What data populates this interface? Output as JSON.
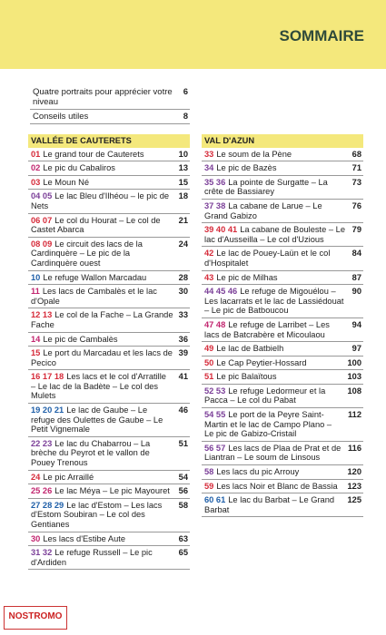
{
  "header": {
    "title": "SOMMAIRE"
  },
  "intro": [
    {
      "title": "Quatre portraits pour apprécier votre niveau",
      "page": 6
    },
    {
      "title": "Conseils utiles",
      "page": 8
    }
  ],
  "sections": [
    {
      "title": "VALLÉE DE CAUTERETS",
      "entries": [
        {
          "nums": "01",
          "title": "Le grand tour de Cauterets",
          "page": 10,
          "color": "#d62b3a"
        },
        {
          "nums": "02",
          "title": "Le pic du Cabaliros",
          "page": 13,
          "color": "#c2256f"
        },
        {
          "nums": "03",
          "title": "Le Moun Né",
          "page": 15,
          "color": "#d62b3a"
        },
        {
          "nums": "04 05",
          "title": "Le lac Bleu d'Ilhéou – le pic de Nets",
          "page": 18,
          "color": "#7b3f98"
        },
        {
          "nums": "06 07",
          "title": "Le col du Hourat – Le col de Castet Abarca",
          "page": 21,
          "color": "#d62b3a"
        },
        {
          "nums": "08 09",
          "title": "Le circuit des lacs de la Cardinquère – Le pic de la Cardinquère ouest",
          "page": 24,
          "color": "#d62b3a"
        },
        {
          "nums": "10",
          "title": "Le refuge Wallon Marcadau",
          "page": 28,
          "color": "#1f5fa8"
        },
        {
          "nums": "11",
          "title": "Les lacs de Cambalès et le lac d'Opale",
          "page": 30,
          "color": "#c2256f"
        },
        {
          "nums": "12 13",
          "title": "Le col de la Fache – La Grande Fache",
          "page": 33,
          "color": "#d62b3a"
        },
        {
          "nums": "14",
          "title": "Le pic de Cambalès",
          "page": 36,
          "color": "#c2256f"
        },
        {
          "nums": "15",
          "title": "Le port du Marcadau et les lacs de Pecico",
          "page": 39,
          "color": "#d62b3a"
        },
        {
          "nums": "16 17 18",
          "title": "Les lacs et le col d'Arratille – Le lac de la Badète – Le col des Mulets",
          "page": 41,
          "color": "#d62b3a"
        },
        {
          "nums": "19 20 21",
          "title": "Le lac de Gaube – Le refuge des Oulettes de Gaube – Le Petit Vignemale",
          "page": 46,
          "color": "#1f5fa8"
        },
        {
          "nums": "22 23",
          "title": "Le lac du Chabarrou – La brèche du Peyrot et le vallon de Pouey Trenous",
          "page": 51,
          "color": "#7b3f98"
        },
        {
          "nums": "24",
          "title": "Le pic Arraillé",
          "page": 54,
          "color": "#d62b3a"
        },
        {
          "nums": "25 26",
          "title": "Le lac Méya – Le pic Mayouret",
          "page": 56,
          "color": "#c2256f"
        },
        {
          "nums": "27 28 29",
          "title": "Le lac d'Estom – Les lacs d'Estom Soubiran – Le col des Gentianes",
          "page": 58,
          "color": "#1f5fa8"
        },
        {
          "nums": "30",
          "title": "Les lacs d'Estibe Aute",
          "page": 63,
          "color": "#c2256f"
        },
        {
          "nums": "31 32",
          "title": "Le refuge Russell – Le pic d'Ardiden",
          "page": 65,
          "color": "#7b3f98"
        }
      ]
    },
    {
      "title": "VAL D'AZUN",
      "entries": [
        {
          "nums": "33",
          "title": "Le soum de la Pène",
          "page": 68,
          "color": "#d62b3a"
        },
        {
          "nums": "34",
          "title": "Le pic de Bazès",
          "page": 71,
          "color": "#7b3f98"
        },
        {
          "nums": "35 36",
          "title": "La pointe de Surgatte – La crête de Bassiarey",
          "page": 73,
          "color": "#7b3f98"
        },
        {
          "nums": "37 38",
          "title": "La cabane de Larue – Le Grand Gabizo",
          "page": 76,
          "color": "#7b3f98"
        },
        {
          "nums": "39 40 41",
          "title": "La cabane de Bouleste – Le lac d'Ausseilla – Le col d'Uzious",
          "page": 79,
          "color": "#d62b3a"
        },
        {
          "nums": "42",
          "title": "Le lac de Pouey-Laün et le col d'Hospitalet",
          "page": 84,
          "color": "#d62b3a"
        },
        {
          "nums": "43",
          "title": "Le pic de Milhas",
          "page": 87,
          "color": "#d62b3a"
        },
        {
          "nums": "44 45 46",
          "title": "Le refuge de Migouélou – Les lacarrats et le lac de Lassiédouat – Le pic de Batboucou",
          "page": 90,
          "color": "#7b3f98"
        },
        {
          "nums": "47 48",
          "title": "Le refuge de Larribet – Les lacs de Batcrabère et Micoulaou",
          "page": 94,
          "color": "#c2256f"
        },
        {
          "nums": "49",
          "title": "Le lac de Batbielh",
          "page": 97,
          "color": "#d62b3a"
        },
        {
          "nums": "50",
          "title": "Le Cap Peytier-Hossard",
          "page": 100,
          "color": "#d62b3a"
        },
        {
          "nums": "51",
          "title": "Le pic Balaïtous",
          "page": 103,
          "color": "#d62b3a"
        },
        {
          "nums": "52 53",
          "title": "Le refuge Ledormeur et la Pacca – Le col du Pabat",
          "page": 108,
          "color": "#7b3f98"
        },
        {
          "nums": "54 55",
          "title": "Le port de la Peyre Saint-Martin et le lac de Campo Plano – Le pic de Gabizo-Cristail",
          "page": 112,
          "color": "#7b3f98"
        },
        {
          "nums": "56 57",
          "title": "Les lacs de Plaa de Prat et de Liantran – Le soum de Linsous",
          "page": 116,
          "color": "#7b3f98"
        },
        {
          "nums": "58",
          "title": "Les lacs du pic Arrouy",
          "page": 120,
          "color": "#7b3f98"
        },
        {
          "nums": "59",
          "title": "Les lacs Noir et Blanc de Bassia",
          "page": 123,
          "color": "#d62b3a"
        },
        {
          "nums": "60 61",
          "title": "Le lac du Barbat – Le Grand Barbat",
          "page": 125,
          "color": "#1f5fa8"
        }
      ]
    }
  ],
  "logo": "NOSTROMO"
}
